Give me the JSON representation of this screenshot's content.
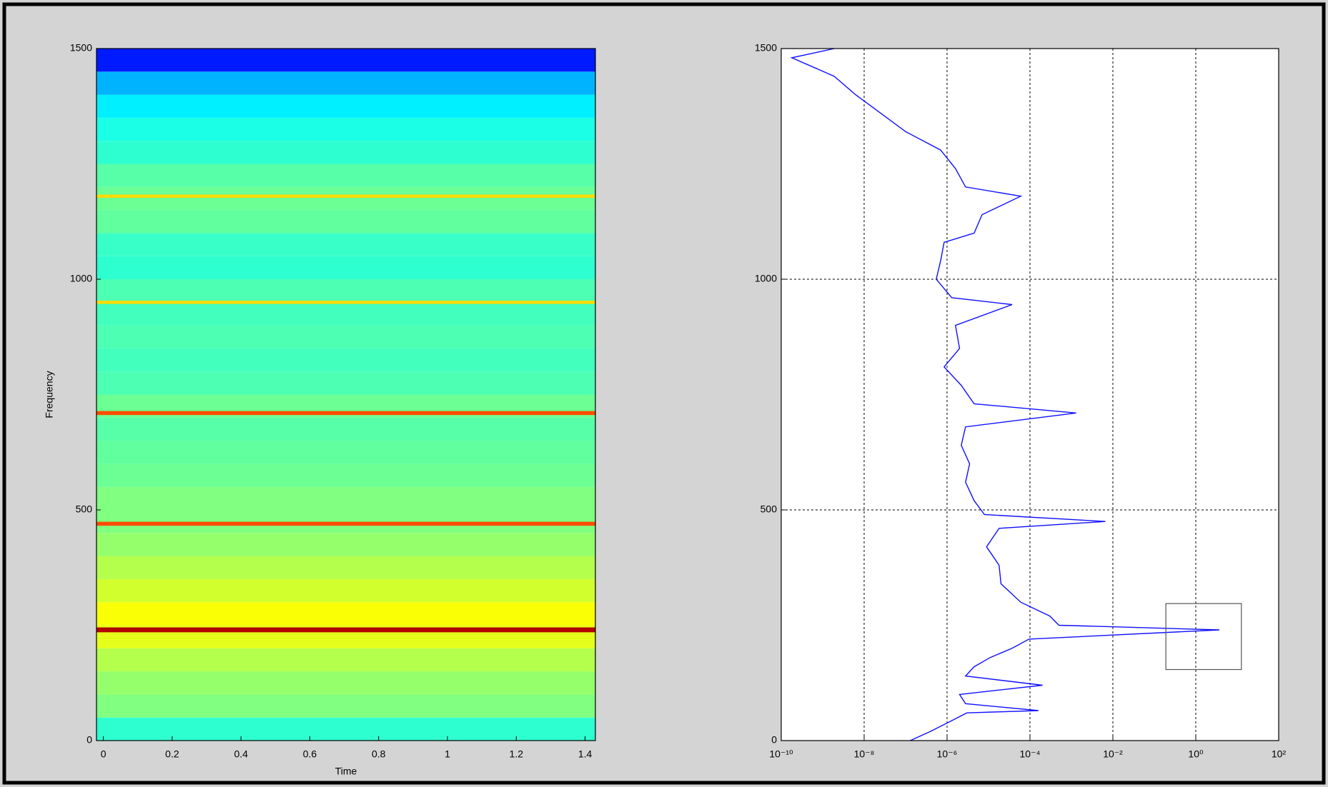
{
  "chart_data": [
    {
      "type": "heatmap",
      "x_label": "Time",
      "y_label": "Frequency",
      "xlim": [
        -0.02,
        1.43
      ],
      "xticks": [
        0,
        0.2,
        0.4,
        0.6,
        0.8,
        1,
        1.2,
        1.4
      ],
      "ylim": [
        0,
        1500
      ],
      "yticks": [
        0,
        500,
        1000,
        1500
      ],
      "rows": [
        0,
        50,
        100,
        150,
        200,
        250,
        300,
        350,
        400,
        450,
        500,
        550,
        600,
        650,
        700,
        750,
        800,
        850,
        900,
        950,
        1000,
        1050,
        1100,
        1150,
        1200,
        1250,
        1300,
        1350,
        1400,
        1450,
        1500
      ],
      "levels": [
        0.42,
        0.5,
        0.52,
        0.55,
        0.6,
        0.62,
        0.58,
        0.55,
        0.52,
        0.5,
        0.5,
        0.48,
        0.47,
        0.46,
        0.48,
        0.45,
        0.44,
        0.45,
        0.44,
        0.45,
        0.42,
        0.43,
        0.47,
        0.48,
        0.46,
        0.42,
        0.4,
        0.36,
        0.3,
        0.15
      ],
      "line_frequencies": [
        240,
        470,
        710,
        950,
        1180
      ],
      "line_levels": [
        0.95,
        0.8,
        0.8,
        0.66,
        0.66
      ]
    },
    {
      "type": "line",
      "log_x": true,
      "grid": true,
      "color": "#1010ff",
      "xlim": [
        1e-10,
        100
      ],
      "xticks": [
        {
          "value": 1e-10,
          "label": "10⁻¹⁰"
        },
        {
          "value": 1e-08,
          "label": "10⁻⁸"
        },
        {
          "value": 1e-06,
          "label": "10⁻⁶"
        },
        {
          "value": 0.0001,
          "label": "10⁻⁴"
        },
        {
          "value": 0.01,
          "label": "10⁻²"
        },
        {
          "value": 1,
          "label": "10⁰"
        },
        {
          "value": 100,
          "label": "10²"
        }
      ],
      "ylim": [
        0,
        1500
      ],
      "yticks": [
        0,
        500,
        1000,
        1500
      ],
      "y": [
        0,
        20,
        40,
        60,
        65,
        80,
        100,
        120,
        140,
        160,
        180,
        200,
        220,
        240,
        250,
        270,
        300,
        340,
        380,
        420,
        460,
        475,
        490,
        520,
        560,
        600,
        640,
        680,
        710,
        730,
        770,
        810,
        850,
        900,
        945,
        960,
        1000,
        1040,
        1080,
        1100,
        1140,
        1180,
        1200,
        1240,
        1280,
        1320,
        1360,
        1400,
        1440,
        1480,
        1500
      ],
      "values": [
        1.3e-07,
        4e-07,
        1.1e-06,
        3e-06,
        0.00016,
        2.8e-06,
        2e-06,
        0.0002,
        2.8e-06,
        4.5e-06,
        1.1e-05,
        3.7e-05,
        9.5e-05,
        3.7,
        0.0005,
        0.0003,
        6e-05,
        2e-05,
        1.8e-05,
        9e-06,
        1.8e-05,
        0.0066,
        8e-06,
        4.5e-06,
        2.8e-06,
        3.5e-06,
        2.2e-06,
        2.8e-06,
        0.0013,
        4.5e-06,
        2.2e-06,
        8.5e-07,
        2e-06,
        1.6e-06,
        3.7e-05,
        1.3e-06,
        5.5e-07,
        7e-07,
        8.5e-07,
        4.5e-06,
        7e-06,
        6e-05,
        2.8e-06,
        1.6e-06,
        7e-07,
        1e-07,
        2.5e-08,
        6.2e-09,
        1.9e-09,
        1.8e-10,
        1.9e-09
      ],
      "box": {
        "xlim": [
          0.19,
          12.6
        ],
        "ylim": [
          154,
          297
        ]
      }
    }
  ]
}
